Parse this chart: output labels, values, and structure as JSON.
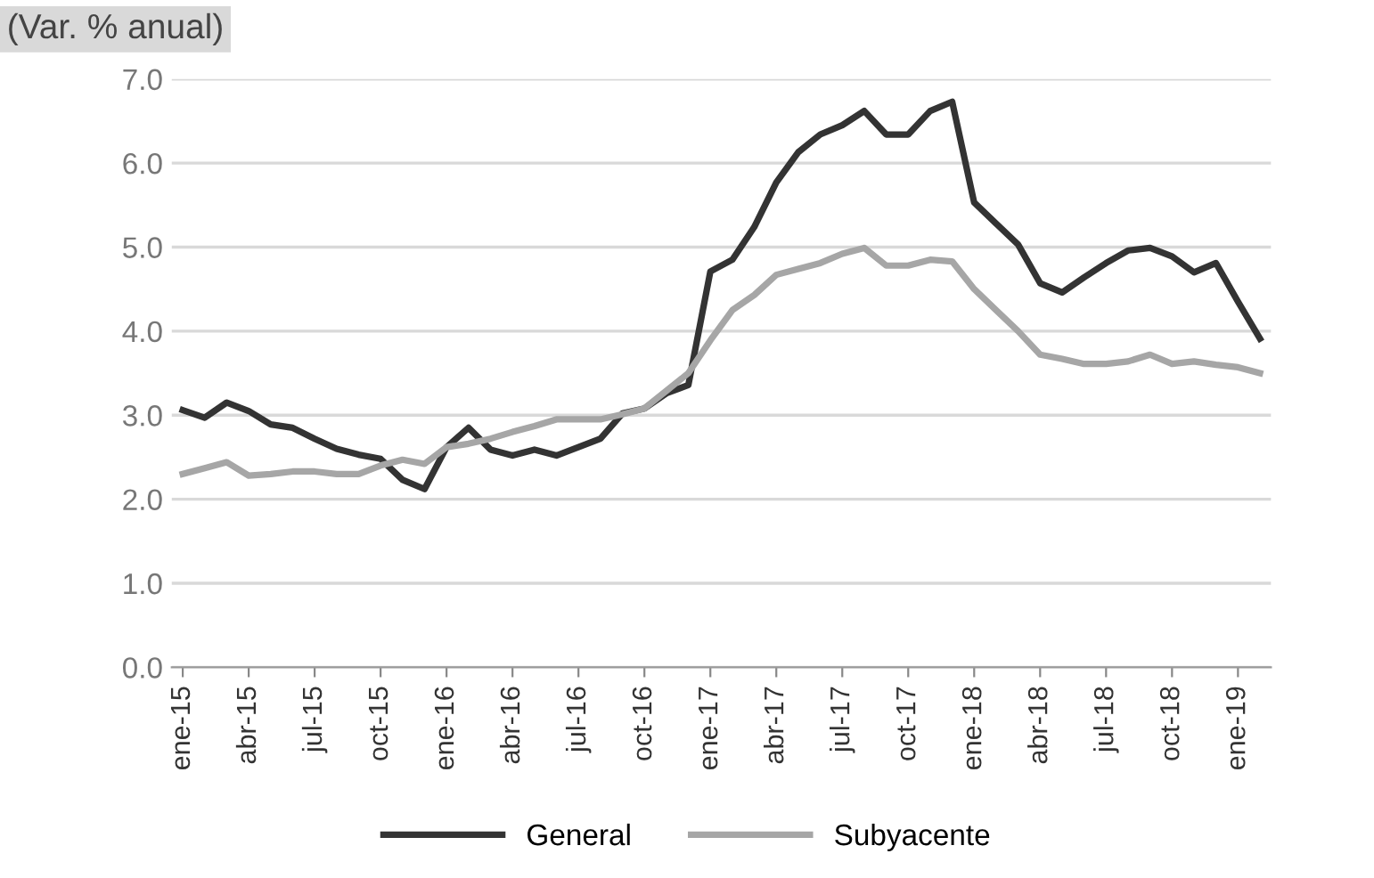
{
  "chart_data": {
    "type": "line",
    "title": "(Var. % anual)",
    "categories": [
      "ene-15",
      null,
      null,
      "abr-15",
      null,
      null,
      "jul-15",
      null,
      null,
      "oct-15",
      null,
      null,
      "ene-16",
      null,
      null,
      "abr-16",
      null,
      null,
      "jul-16",
      null,
      null,
      "oct-16",
      null,
      null,
      "ene-17",
      null,
      null,
      "abr-17",
      null,
      null,
      "jul-17",
      null,
      null,
      "oct-17",
      null,
      null,
      "ene-18",
      null,
      null,
      "abr-18",
      null,
      null,
      "jul-18",
      null,
      null,
      "oct-18",
      null,
      null,
      "ene-19",
      null
    ],
    "series": [
      {
        "name": "General",
        "color": "#333333",
        "values": [
          3.06,
          2.97,
          3.15,
          3.05,
          2.89,
          2.85,
          2.72,
          2.6,
          2.53,
          2.48,
          2.23,
          2.12,
          2.62,
          2.85,
          2.59,
          2.52,
          2.59,
          2.52,
          2.62,
          2.72,
          3.02,
          3.08,
          3.26,
          3.36,
          4.71,
          4.85,
          5.24,
          5.77,
          6.13,
          6.34,
          6.45,
          6.62,
          6.34,
          6.34,
          6.62,
          6.73,
          5.53,
          5.28,
          5.03,
          4.57,
          4.46,
          4.64,
          4.81,
          4.96,
          4.99,
          4.89,
          4.7,
          4.81,
          4.35,
          3.91
        ]
      },
      {
        "name": "Subyacente",
        "color": "#a6a6a6",
        "values": [
          2.3,
          2.37,
          2.44,
          2.28,
          2.3,
          2.33,
          2.33,
          2.3,
          2.3,
          2.4,
          2.47,
          2.42,
          2.62,
          2.66,
          2.72,
          2.8,
          2.87,
          2.95,
          2.95,
          2.95,
          3.01,
          3.08,
          3.29,
          3.5,
          3.89,
          4.25,
          4.43,
          4.67,
          4.74,
          4.81,
          4.92,
          4.99,
          4.78,
          4.78,
          4.85,
          4.83,
          4.5,
          4.25,
          4.0,
          3.72,
          3.67,
          3.61,
          3.61,
          3.64,
          3.72,
          3.61,
          3.64,
          3.6,
          3.57,
          3.5
        ]
      }
    ],
    "ylim": [
      0,
      7
    ],
    "yticks": [
      {
        "value": 0,
        "label": "0.0"
      },
      {
        "value": 1,
        "label": "1.0"
      },
      {
        "value": 2,
        "label": "2.0"
      },
      {
        "value": 3,
        "label": "3.0"
      },
      {
        "value": 4,
        "label": "4.0"
      },
      {
        "value": 5,
        "label": "5.0"
      },
      {
        "value": 6,
        "label": "6.0"
      },
      {
        "value": 7,
        "label": "7.0"
      }
    ],
    "grid": "y",
    "legend": "bottom",
    "marker": "none",
    "line_style": "solid"
  }
}
